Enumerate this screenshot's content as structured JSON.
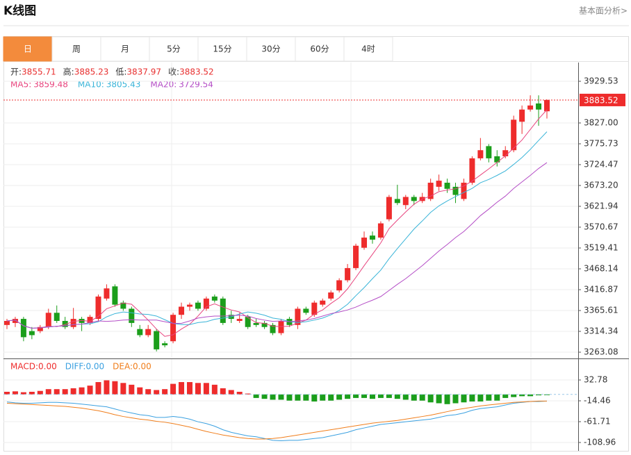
{
  "header": {
    "title": "K线图",
    "link": "基本面分析>"
  },
  "tabs": [
    "日",
    "周",
    "月",
    "5分",
    "15分",
    "30分",
    "60分",
    "4时"
  ],
  "active_tab": 0,
  "chart_data": [
    {
      "type": "candlestick",
      "ohlc_labels": [
        "开:",
        "高:",
        "低:",
        "收:"
      ],
      "up_color": "#ee2c2c",
      "down_color": "#1b9e1b",
      "candles": [
        [
          3330,
          3345,
          3320,
          3340
        ],
        [
          3335,
          3350,
          3325,
          3345
        ],
        [
          3345,
          3350,
          3290,
          3300
        ],
        [
          3315,
          3325,
          3295,
          3305
        ],
        [
          3315,
          3330,
          3310,
          3325
        ],
        [
          3325,
          3370,
          3320,
          3360
        ],
        [
          3360,
          3378,
          3335,
          3340
        ],
        [
          3340,
          3350,
          3320,
          3325
        ],
        [
          3325,
          3372,
          3320,
          3345
        ],
        [
          3345,
          3350,
          3315,
          3335
        ],
        [
          3335,
          3355,
          3330,
          3350
        ],
        [
          3345,
          3405,
          3340,
          3400
        ],
        [
          3395,
          3430,
          3390,
          3420
        ],
        [
          3425,
          3430,
          3375,
          3380
        ],
        [
          3385,
          3390,
          3365,
          3370
        ],
        [
          3370,
          3375,
          3325,
          3335
        ],
        [
          3320,
          3330,
          3300,
          3305
        ],
        [
          3305,
          3330,
          3300,
          3320
        ],
        [
          3315,
          3320,
          3265,
          3270
        ],
        [
          3285,
          3290,
          3275,
          3280
        ],
        [
          3290,
          3360,
          3285,
          3355
        ],
        [
          3355,
          3385,
          3345,
          3375
        ],
        [
          3375,
          3385,
          3365,
          3380
        ],
        [
          3385,
          3390,
          3365,
          3370
        ],
        [
          3370,
          3400,
          3365,
          3395
        ],
        [
          3400,
          3405,
          3385,
          3390
        ],
        [
          3395,
          3400,
          3330,
          3335
        ],
        [
          3355,
          3365,
          3335,
          3345
        ],
        [
          3340,
          3360,
          3335,
          3345
        ],
        [
          3350,
          3355,
          3320,
          3325
        ],
        [
          3335,
          3345,
          3325,
          3330
        ],
        [
          3335,
          3340,
          3320,
          3325
        ],
        [
          3330,
          3335,
          3305,
          3310
        ],
        [
          3310,
          3345,
          3305,
          3340
        ],
        [
          3345,
          3350,
          3325,
          3330
        ],
        [
          3330,
          3375,
          3320,
          3370
        ],
        [
          3370,
          3375,
          3355,
          3360
        ],
        [
          3355,
          3390,
          3350,
          3385
        ],
        [
          3380,
          3395,
          3375,
          3390
        ],
        [
          3395,
          3415,
          3390,
          3410
        ],
        [
          3415,
          3445,
          3410,
          3440
        ],
        [
          3440,
          3480,
          3435,
          3470
        ],
        [
          3470,
          3530,
          3465,
          3525
        ],
        [
          3520,
          3560,
          3515,
          3545
        ],
        [
          3550,
          3560,
          3530,
          3540
        ],
        [
          3545,
          3585,
          3540,
          3580
        ],
        [
          3590,
          3650,
          3585,
          3645
        ],
        [
          3640,
          3675,
          3625,
          3630
        ],
        [
          3625,
          3650,
          3615,
          3645
        ],
        [
          3645,
          3650,
          3625,
          3635
        ],
        [
          3635,
          3655,
          3630,
          3645
        ],
        [
          3640,
          3690,
          3635,
          3680
        ],
        [
          3670,
          3700,
          3660,
          3685
        ],
        [
          3680,
          3690,
          3655,
          3665
        ],
        [
          3670,
          3680,
          3630,
          3650
        ],
        [
          3640,
          3690,
          3635,
          3680
        ],
        [
          3680,
          3745,
          3675,
          3740
        ],
        [
          3740,
          3790,
          3735,
          3760
        ],
        [
          3770,
          3775,
          3730,
          3740
        ],
        [
          3745,
          3760,
          3720,
          3730
        ],
        [
          3745,
          3770,
          3740,
          3760
        ],
        [
          3760,
          3845,
          3755,
          3835
        ],
        [
          3830,
          3870,
          3800,
          3860
        ],
        [
          3860,
          3895,
          3855,
          3870
        ],
        [
          3875,
          3895,
          3820,
          3860
        ],
        [
          3855.71,
          3885.23,
          3837.97,
          3883.52
        ]
      ],
      "series": [
        {
          "name": "MA5:",
          "color": "#e8437d",
          "values": [
            3340,
            3342,
            3328,
            3322,
            3323,
            3327,
            3326,
            3331,
            3339,
            3341,
            3339,
            3351,
            3370,
            3377,
            3384,
            3381,
            3362,
            3342,
            3320,
            3302,
            3306,
            3320,
            3332,
            3352,
            3375,
            3382,
            3374,
            3367,
            3362,
            3348,
            3336,
            3334,
            3327,
            3326,
            3327,
            3335,
            3342,
            3357,
            3367,
            3383,
            3397,
            3419,
            3447,
            3476,
            3504,
            3532,
            3567,
            3588,
            3608,
            3627,
            3640,
            3647,
            3658,
            3662,
            3665,
            3672,
            3684,
            3699,
            3714,
            3730,
            3746,
            3765,
            3785,
            3811,
            3837,
            3859.48
          ]
        },
        {
          "name": "MA10:",
          "color": "#39b4d8",
          "values": [
            3340,
            3342,
            3328,
            3322,
            3323,
            3325,
            3327,
            3328,
            3331,
            3332,
            3333,
            3338,
            3350,
            3358,
            3362,
            3360,
            3357,
            3356,
            3352,
            3343,
            3334,
            3331,
            3331,
            3336,
            3338,
            3344,
            3347,
            3350,
            3357,
            3362,
            3359,
            3354,
            3347,
            3344,
            3338,
            3336,
            3338,
            3342,
            3347,
            3355,
            3366,
            3381,
            3402,
            3422,
            3444,
            3465,
            3493,
            3518,
            3542,
            3566,
            3586,
            3607,
            3623,
            3635,
            3646,
            3656,
            3666,
            3680,
            3688,
            3698,
            3709,
            3725,
            3742,
            3762,
            3784,
            3805.43
          ]
        },
        {
          "name": "MA20:",
          "color": "#b44dc6",
          "values": [
            3340,
            3342,
            3328,
            3322,
            3323,
            3325,
            3327,
            3328,
            3331,
            3332,
            3336,
            3340,
            3339,
            3340,
            3342,
            3343,
            3342,
            3342,
            3342,
            3338,
            3334,
            3334,
            3340,
            3347,
            3350,
            3352,
            3352,
            3353,
            3354,
            3352,
            3346,
            3342,
            3339,
            3340,
            3338,
            3340,
            3342,
            3346,
            3352,
            3358,
            3362,
            3367,
            3374,
            3383,
            3391,
            3400,
            3415,
            3430,
            3444,
            3460,
            3476,
            3494,
            3512,
            3528,
            3545,
            3560,
            3579,
            3599,
            3615,
            3632,
            3647,
            3666,
            3682,
            3698,
            3715,
            3729.54
          ]
        }
      ],
      "ylim": [
        3249.4,
        3975.7
      ],
      "yticks": [
        3263.08,
        3314.34,
        3365.61,
        3416.87,
        3468.14,
        3519.41,
        3570.67,
        3621.94,
        {
          "value": 3673.2,
          "label": "3673.20"
        },
        3724.47,
        3775.73,
        {
          "value": 3827,
          "label": "3827.00"
        },
        3929.53
      ],
      "grid": true
    },
    {
      "type": "macd",
      "histogram": {
        "name": "MACD:",
        "printed": "0.00",
        "up_color": "#ee2c2c",
        "down_color": "#1b9e1b",
        "values": [
          6,
          7,
          5,
          6,
          8,
          12,
          12,
          12,
          14,
          16,
          20,
          28,
          32,
          30,
          26,
          22,
          16,
          12,
          10,
          12,
          24,
          28,
          28,
          26,
          26,
          22,
          14,
          10,
          6,
          2,
          -8,
          -10,
          -12,
          -12,
          -14,
          -14,
          -14,
          -16,
          -14,
          -14,
          -12,
          -10,
          -8,
          -8,
          -10,
          -8,
          -8,
          -10,
          -12,
          -14,
          -14,
          -18,
          -20,
          -22,
          -20,
          -18,
          -16,
          -16,
          -14,
          -14,
          -8,
          -6,
          -4,
          -4,
          -2,
          -1
        ]
      },
      "series": [
        {
          "name": "DIFF:",
          "printed": "0.00",
          "color": "#3aa0e0",
          "values": [
            -17,
            -19,
            -20,
            -20,
            -19,
            -18,
            -18,
            -19,
            -20,
            -22,
            -24,
            -26,
            -28,
            -33,
            -38,
            -42,
            -46,
            -48,
            -52,
            -52,
            -50,
            -52,
            -56,
            -62,
            -66,
            -72,
            -80,
            -86,
            -90,
            -94,
            -96,
            -100,
            -104,
            -105,
            -104,
            -104,
            -102,
            -100,
            -98,
            -94,
            -90,
            -86,
            -80,
            -76,
            -72,
            -68,
            -66,
            -64,
            -62,
            -60,
            -58,
            -56,
            -52,
            -48,
            -46,
            -42,
            -36,
            -32,
            -30,
            -28,
            -24,
            -20,
            -18,
            -16,
            -16,
            -15
          ]
        },
        {
          "name": "DEA:",
          "printed": "0.00",
          "color": "#f07d1a",
          "values": [
            -20,
            -21,
            -22,
            -23,
            -24,
            -25,
            -26,
            -27,
            -29,
            -31,
            -34,
            -37,
            -41,
            -46,
            -50,
            -53,
            -56,
            -58,
            -61,
            -63,
            -66,
            -70,
            -74,
            -79,
            -84,
            -88,
            -92,
            -95,
            -98,
            -100,
            -101,
            -101,
            -100,
            -98,
            -95,
            -92,
            -89,
            -86,
            -83,
            -80,
            -77,
            -74,
            -71,
            -68,
            -65,
            -63,
            -61,
            -59,
            -56,
            -53,
            -50,
            -47,
            -43,
            -39,
            -35,
            -32,
            -29,
            -26,
            -24,
            -22,
            -20,
            -18,
            -17,
            -16,
            -15,
            -15
          ]
        }
      ],
      "ylim": [
        -126.3,
        80.03
      ],
      "yticks": [
        -108.96,
        -61.71,
        -14.46,
        32.78
      ],
      "grid": true
    }
  ]
}
